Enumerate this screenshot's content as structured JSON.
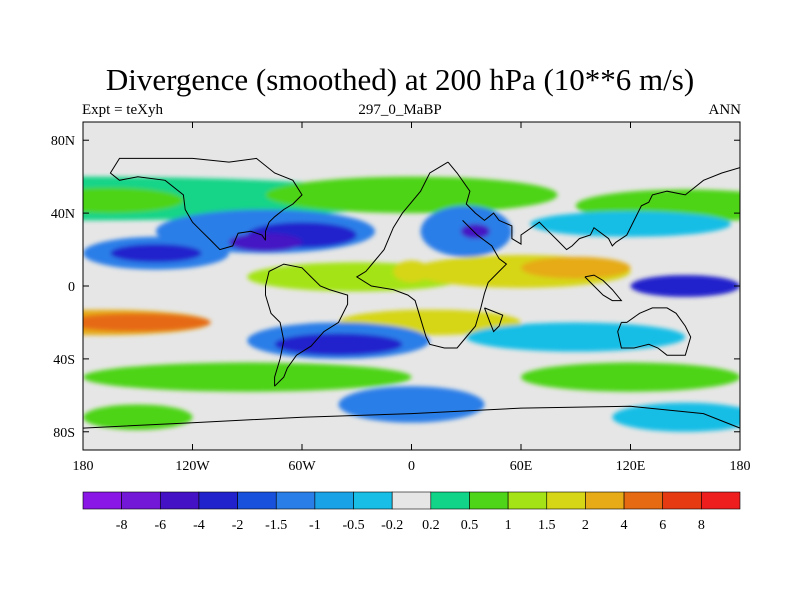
{
  "title": "Divergence (smoothed) at 200 hPa (10**6 m/s)",
  "subtitle_left": "Expt = teXyh",
  "subtitle_center": "297_0_MaBP",
  "subtitle_right": "ANN",
  "map": {
    "lon_range": [
      -180,
      180
    ],
    "lat_range": [
      -90,
      90
    ],
    "x_ticks": [
      {
        "lon": -180,
        "label": "180"
      },
      {
        "lon": -120,
        "label": "120W"
      },
      {
        "lon": -60,
        "label": "60W"
      },
      {
        "lon": 0,
        "label": "0"
      },
      {
        "lon": 60,
        "label": "60E"
      },
      {
        "lon": 120,
        "label": "120E"
      },
      {
        "lon": 180,
        "label": "180"
      }
    ],
    "y_ticks": [
      {
        "lat": 80,
        "label": "80N"
      },
      {
        "lat": 40,
        "label": "40N"
      },
      {
        "lat": 0,
        "label": "0"
      },
      {
        "lat": -40,
        "label": "40S"
      },
      {
        "lat": -80,
        "label": "80S"
      }
    ]
  },
  "colorbar": {
    "labels": [
      "-8",
      "-6",
      "-4",
      "-2",
      "-1.5",
      "-1",
      "-0.5",
      "-0.2",
      "0.2",
      "0.5",
      "1",
      "1.5",
      "2",
      "4",
      "6",
      "8"
    ],
    "colors": [
      "#8a17e6",
      "#7418d8",
      "#4412c4",
      "#2222cc",
      "#1852dc",
      "#2a7ee8",
      "#1aa2e6",
      "#18bee6",
      "#e6e6e6",
      "#12d488",
      "#4ed418",
      "#a4e416",
      "#d6d616",
      "#e6ab16",
      "#e66a12",
      "#e63a12",
      "#ee1e1e"
    ]
  },
  "colors": {
    "background": "#e6e6e6",
    "coastline": "#000000"
  },
  "field_blobs": [
    {
      "lon": -180,
      "lat": 48,
      "rlon": 180,
      "rlat": 12,
      "level": 9
    },
    {
      "lon": -165,
      "lat": 47,
      "rlon": 40,
      "rlat": 7,
      "level": 10
    },
    {
      "lon": 0,
      "lat": 50,
      "rlon": 80,
      "rlat": 10,
      "level": 10
    },
    {
      "lon": 150,
      "lat": 44,
      "rlon": 60,
      "rlat": 9,
      "level": 10
    },
    {
      "lon": -80,
      "lat": 30,
      "rlon": 60,
      "rlat": 12,
      "level": 5
    },
    {
      "lon": -60,
      "lat": 28,
      "rlon": 30,
      "rlat": 7,
      "level": 3
    },
    {
      "lon": -80,
      "lat": 24,
      "rlon": 20,
      "rlat": 5,
      "level": 2
    },
    {
      "lon": -140,
      "lat": 18,
      "rlon": 40,
      "rlat": 9,
      "level": 5
    },
    {
      "lon": -140,
      "lat": 18,
      "rlon": 25,
      "rlat": 5,
      "level": 3
    },
    {
      "lon": 30,
      "lat": 30,
      "rlon": 25,
      "rlat": 14,
      "level": 5
    },
    {
      "lon": 35,
      "lat": 30,
      "rlon": 8,
      "rlat": 4,
      "level": 2
    },
    {
      "lon": 120,
      "lat": 34,
      "rlon": 55,
      "rlat": 7,
      "level": 7
    },
    {
      "lon": -30,
      "lat": 5,
      "rlon": 60,
      "rlat": 8,
      "level": 11
    },
    {
      "lon": 0,
      "lat": 8,
      "rlon": 10,
      "rlat": 6,
      "level": 12
    },
    {
      "lon": 60,
      "lat": 8,
      "rlon": 60,
      "rlat": 9,
      "level": 12
    },
    {
      "lon": 90,
      "lat": 10,
      "rlon": 30,
      "rlat": 6,
      "level": 13
    },
    {
      "lon": 150,
      "lat": 0,
      "rlon": 30,
      "rlat": 6,
      "level": 3
    },
    {
      "lon": -170,
      "lat": -20,
      "rlon": 60,
      "rlat": 7,
      "level": 13
    },
    {
      "lon": -150,
      "lat": -20,
      "rlon": 40,
      "rlat": 5,
      "level": 14
    },
    {
      "lon": 10,
      "lat": -20,
      "rlon": 50,
      "rlat": 7,
      "level": 12
    },
    {
      "lon": -40,
      "lat": -30,
      "rlon": 50,
      "rlat": 10,
      "level": 5
    },
    {
      "lon": -40,
      "lat": -32,
      "rlon": 35,
      "rlat": 6,
      "level": 3
    },
    {
      "lon": 90,
      "lat": -28,
      "rlon": 60,
      "rlat": 8,
      "level": 7
    },
    {
      "lon": -90,
      "lat": -50,
      "rlon": 90,
      "rlat": 8,
      "level": 10
    },
    {
      "lon": 120,
      "lat": -50,
      "rlon": 60,
      "rlat": 8,
      "level": 10
    },
    {
      "lon": 0,
      "lat": -65,
      "rlon": 40,
      "rlat": 10,
      "level": 5
    },
    {
      "lon": -150,
      "lat": -72,
      "rlon": 30,
      "rlat": 7,
      "level": 10
    },
    {
      "lon": 150,
      "lat": -72,
      "rlon": 40,
      "rlat": 8,
      "level": 7
    }
  ],
  "coastlines": [
    [
      [
        20,
        68
      ],
      [
        25,
        62
      ],
      [
        32,
        52
      ],
      [
        30,
        45
      ],
      [
        35,
        40
      ],
      [
        40,
        36
      ],
      [
        45,
        40
      ],
      [
        48,
        36
      ],
      [
        55,
        33
      ],
      [
        55,
        26
      ],
      [
        60,
        23
      ],
      [
        60,
        28
      ],
      [
        70,
        35
      ],
      [
        75,
        30
      ],
      [
        80,
        25
      ],
      [
        85,
        20
      ],
      [
        88,
        22
      ],
      [
        92,
        26
      ],
      [
        98,
        28
      ],
      [
        100,
        32
      ],
      [
        108,
        26
      ],
      [
        110,
        22
      ],
      [
        112,
        24
      ],
      [
        118,
        28
      ],
      [
        122,
        36
      ],
      [
        126,
        44
      ],
      [
        130,
        46
      ],
      [
        132,
        50
      ],
      [
        140,
        52
      ],
      [
        150,
        50
      ],
      [
        160,
        58
      ],
      [
        170,
        62
      ],
      [
        180,
        65
      ]
    ],
    [
      [
        20,
        68
      ],
      [
        10,
        62
      ],
      [
        5,
        52
      ],
      [
        0,
        46
      ],
      [
        -5,
        40
      ],
      [
        -10,
        32
      ],
      [
        -15,
        20
      ],
      [
        -20,
        14
      ],
      [
        -25,
        8
      ],
      [
        -30,
        5
      ],
      [
        -22,
        0
      ],
      [
        -10,
        -2
      ],
      [
        -2,
        -5
      ],
      [
        2,
        -8
      ],
      [
        5,
        -18
      ],
      [
        8,
        -28
      ],
      [
        10,
        -32
      ],
      [
        18,
        -34
      ],
      [
        25,
        -34
      ],
      [
        30,
        -28
      ],
      [
        35,
        -22
      ],
      [
        38,
        -12
      ],
      [
        40,
        -4
      ],
      [
        42,
        2
      ],
      [
        48,
        8
      ],
      [
        52,
        12
      ],
      [
        48,
        15
      ],
      [
        44,
        22
      ],
      [
        36,
        28
      ],
      [
        32,
        32
      ],
      [
        28,
        36
      ]
    ],
    [
      [
        -75,
        -55
      ],
      [
        -70,
        -50
      ],
      [
        -68,
        -45
      ],
      [
        -63,
        -38
      ],
      [
        -55,
        -33
      ],
      [
        -48,
        -25
      ],
      [
        -40,
        -20
      ],
      [
        -35,
        -10
      ],
      [
        -35,
        -5
      ],
      [
        -45,
        -2
      ],
      [
        -50,
        0
      ],
      [
        -55,
        5
      ],
      [
        -60,
        10
      ],
      [
        -70,
        12
      ],
      [
        -78,
        8
      ],
      [
        -80,
        0
      ],
      [
        -80,
        -5
      ],
      [
        -77,
        -15
      ],
      [
        -72,
        -20
      ],
      [
        -70,
        -30
      ],
      [
        -72,
        -40
      ],
      [
        -75,
        -50
      ],
      [
        -75,
        -55
      ]
    ],
    [
      [
        -80,
        25
      ],
      [
        -82,
        28
      ],
      [
        -88,
        30
      ],
      [
        -95,
        29
      ],
      [
        -98,
        22
      ],
      [
        -105,
        20
      ],
      [
        -110,
        25
      ],
      [
        -115,
        30
      ],
      [
        -120,
        35
      ],
      [
        -124,
        42
      ],
      [
        -125,
        50
      ],
      [
        -135,
        58
      ],
      [
        -150,
        60
      ],
      [
        -160,
        58
      ],
      [
        -165,
        62
      ],
      [
        -160,
        70
      ],
      [
        -140,
        70
      ],
      [
        -120,
        70
      ],
      [
        -100,
        68
      ],
      [
        -85,
        70
      ],
      [
        -75,
        62
      ],
      [
        -65,
        58
      ],
      [
        -60,
        50
      ],
      [
        -65,
        45
      ],
      [
        -70,
        42
      ],
      [
        -75,
        38
      ],
      [
        -78,
        35
      ],
      [
        -80,
        30
      ],
      [
        -80,
        25
      ]
    ],
    [
      [
        115,
        -20
      ],
      [
        113,
        -25
      ],
      [
        115,
        -34
      ],
      [
        122,
        -34
      ],
      [
        130,
        -32
      ],
      [
        135,
        -34
      ],
      [
        140,
        -38
      ],
      [
        150,
        -38
      ],
      [
        153,
        -28
      ],
      [
        150,
        -22
      ],
      [
        145,
        -15
      ],
      [
        140,
        -12
      ],
      [
        132,
        -12
      ],
      [
        125,
        -15
      ],
      [
        118,
        -20
      ],
      [
        115,
        -20
      ]
    ],
    [
      [
        -180,
        -78
      ],
      [
        -120,
        -75
      ],
      [
        -60,
        -72
      ],
      [
        0,
        -70
      ],
      [
        60,
        -67
      ],
      [
        120,
        -66
      ],
      [
        160,
        -70
      ],
      [
        180,
        -78
      ]
    ],
    [
      [
        95,
        5
      ],
      [
        100,
        0
      ],
      [
        105,
        -5
      ],
      [
        110,
        -8
      ],
      [
        115,
        -8
      ],
      [
        110,
        -2
      ],
      [
        105,
        3
      ],
      [
        100,
        6
      ],
      [
        95,
        5
      ]
    ],
    [
      [
        40,
        -12
      ],
      [
        45,
        -14
      ],
      [
        50,
        -16
      ],
      [
        48,
        -22
      ],
      [
        45,
        -25
      ],
      [
        43,
        -20
      ],
      [
        40,
        -12
      ]
    ]
  ]
}
